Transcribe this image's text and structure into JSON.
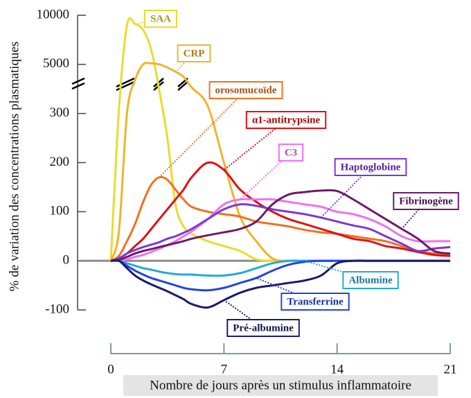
{
  "chart_data": {
    "type": "line",
    "ylabel": "% de variation des concentrations plasmatiques",
    "xlabel": "Nombre de jours après un stimulus inflammatoire",
    "x": [
      0,
      0.5,
      1,
      1.5,
      2,
      2.5,
      3,
      3.5,
      4,
      4.5,
      5,
      6,
      7,
      8,
      9,
      10,
      11,
      12,
      13,
      14,
      15,
      16,
      17,
      18,
      19,
      20,
      21
    ],
    "xlim": [
      0,
      21
    ],
    "xticks": [
      0,
      7,
      14,
      21
    ],
    "ylim": [
      -100,
      10000
    ],
    "yticks": [
      -100,
      0,
      100,
      200,
      300,
      5000,
      10000
    ],
    "y_scale": "tick-spaced",
    "axis_break": true,
    "series": [
      {
        "name": "SAA",
        "color": "#e8dc2c",
        "values": [
          0,
          600,
          9000,
          9100,
          8500,
          6500,
          2500,
          250,
          115,
          70,
          55,
          40,
          30,
          20,
          3,
          0,
          0,
          0,
          0,
          0,
          0,
          0,
          0,
          0,
          0,
          0,
          0
        ]
      },
      {
        "name": "CRP",
        "color": "#f0b42a",
        "values": [
          0,
          60,
          300,
          3500,
          5000,
          5100,
          5000,
          4700,
          4300,
          3800,
          2800,
          1000,
          200,
          90,
          40,
          5,
          0,
          0,
          0,
          0,
          0,
          0,
          0,
          0,
          0,
          0,
          0
        ]
      },
      {
        "name": "orosomucoïde",
        "color": "#f07020",
        "values": [
          0,
          10,
          40,
          75,
          120,
          155,
          170,
          165,
          145,
          125,
          110,
          100,
          95,
          90,
          80,
          75,
          70,
          63,
          58,
          55,
          50,
          45,
          40,
          30,
          20,
          15,
          12
        ]
      },
      {
        "name": "α1-antitrypsine",
        "color": "#e01010",
        "values": [
          0,
          5,
          15,
          30,
          45,
          65,
          85,
          105,
          125,
          145,
          170,
          200,
          185,
          145,
          120,
          100,
          85,
          75,
          65,
          55,
          45,
          40,
          30,
          25,
          18,
          12,
          10
        ]
      },
      {
        "name": "C3",
        "color": "#f070f0",
        "values": [
          0,
          0,
          3,
          8,
          12,
          18,
          25,
          32,
          40,
          50,
          60,
          85,
          115,
          125,
          125,
          125,
          120,
          115,
          110,
          100,
          95,
          85,
          70,
          50,
          40,
          40,
          40
        ]
      },
      {
        "name": "Haptoglobine",
        "color": "#7a38d8",
        "values": [
          0,
          5,
          15,
          22,
          28,
          33,
          38,
          45,
          50,
          57,
          65,
          85,
          105,
          115,
          112,
          105,
          100,
          95,
          88,
          80,
          72,
          65,
          50,
          35,
          20,
          25,
          28
        ]
      },
      {
        "name": "Fibrinogène",
        "color": "#6a1a6a",
        "values": [
          0,
          2,
          8,
          15,
          20,
          24,
          28,
          32,
          36,
          40,
          45,
          52,
          58,
          65,
          80,
          115,
          135,
          140,
          143,
          142,
          125,
          105,
          85,
          65,
          45,
          20,
          15
        ]
      },
      {
        "name": "Albumine",
        "color": "#22a8e0",
        "values": [
          0,
          0,
          -5,
          -10,
          -15,
          -18,
          -22,
          -25,
          -27,
          -28,
          -28,
          -30,
          -30,
          -25,
          -15,
          -5,
          0,
          0,
          0,
          0,
          0,
          0,
          0,
          0,
          0,
          0,
          0
        ]
      },
      {
        "name": "Transferrine",
        "color": "#2244e0",
        "values": [
          0,
          0,
          -10,
          -20,
          -28,
          -35,
          -40,
          -45,
          -50,
          -55,
          -58,
          -60,
          -55,
          -45,
          -35,
          -20,
          -8,
          -2,
          0,
          0,
          0,
          0,
          0,
          0,
          0,
          0,
          0
        ]
      },
      {
        "name": "Pré-albumine",
        "color": "#1a1a6a",
        "values": [
          0,
          0,
          -15,
          -30,
          -40,
          -48,
          -55,
          -62,
          -70,
          -78,
          -88,
          -95,
          -80,
          -65,
          -55,
          -50,
          -45,
          -40,
          -30,
          -5,
          0,
          0,
          0,
          0,
          0,
          0,
          0
        ]
      }
    ]
  }
}
